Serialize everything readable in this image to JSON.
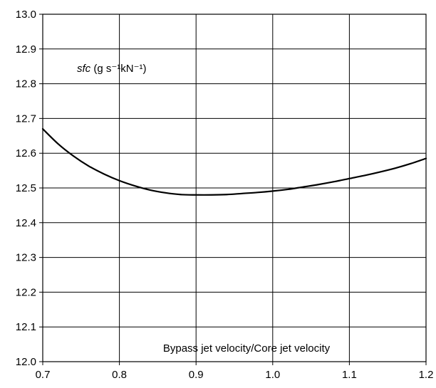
{
  "chart_data": {
    "type": "line",
    "title": "",
    "xlabel": "Bypass jet velocity/Core jet velocity",
    "ylabel": "sfc (g s⁻¹kN⁻¹)",
    "ylabel_parts": {
      "symbol": "sfc",
      "units": " (g s⁻¹kN⁻¹)"
    },
    "xlim": [
      0.7,
      1.2
    ],
    "ylim": [
      12.0,
      13.0
    ],
    "grid": true,
    "x_ticks": [
      "0.7",
      "0.8",
      "0.9",
      "1.0",
      "1.1",
      "1.2"
    ],
    "y_ticks": [
      "12.0",
      "12.1",
      "12.2",
      "12.3",
      "12.4",
      "12.5",
      "12.6",
      "12.7",
      "12.8",
      "12.9",
      "13.0"
    ],
    "series": [
      {
        "x": [
          0.7,
          0.72,
          0.74,
          0.76,
          0.78,
          0.8,
          0.82,
          0.84,
          0.86,
          0.88,
          0.9,
          0.92,
          0.94,
          0.96,
          0.98,
          1.0,
          1.02,
          1.04,
          1.06,
          1.08,
          1.1,
          1.12,
          1.14,
          1.16,
          1.18,
          1.2
        ],
        "y": [
          12.67,
          12.627,
          12.592,
          12.563,
          12.54,
          12.521,
          12.506,
          12.494,
          12.486,
          12.481,
          12.48,
          12.48,
          12.481,
          12.484,
          12.487,
          12.491,
          12.496,
          12.503,
          12.51,
          12.518,
          12.527,
          12.536,
          12.546,
          12.557,
          12.57,
          12.585
        ]
      }
    ]
  }
}
